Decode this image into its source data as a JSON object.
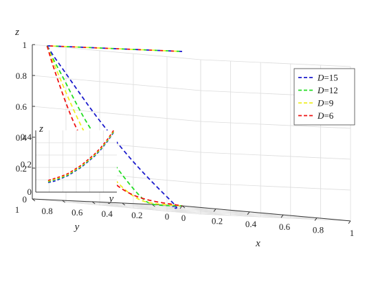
{
  "chart_data": {
    "type": "line",
    "projection": "3d",
    "axes": {
      "x": {
        "label": "x",
        "range": [
          0,
          1
        ],
        "ticks": [
          "0",
          "0.2",
          "0.4",
          "0.6",
          "0.8",
          "1"
        ]
      },
      "y": {
        "label": "y",
        "range": [
          0,
          1
        ],
        "ticks": [
          "0",
          "0.2",
          "0.4",
          "0.6",
          "0.8",
          "1"
        ]
      },
      "z": {
        "label": "z",
        "range": [
          0,
          1
        ],
        "ticks": [
          "0",
          "0.2",
          "0.4",
          "0.6",
          "0.8",
          "1"
        ]
      }
    },
    "grid": true,
    "legend": {
      "placement": "right",
      "var": "D",
      "entries": [
        "=15",
        "=12",
        "=9",
        "=6"
      ]
    },
    "series": [
      {
        "name": "D=15",
        "color": "#1a1acc",
        "style": "dashed",
        "points": [
          [
            0.07,
            0.98,
            1.0
          ],
          [
            0.1,
            0.98,
            0.95
          ],
          [
            0.16,
            0.97,
            0.85
          ],
          [
            0.23,
            0.95,
            0.72
          ],
          [
            0.3,
            0.92,
            0.58
          ],
          [
            0.37,
            0.87,
            0.43
          ],
          [
            0.43,
            0.8,
            0.28
          ],
          [
            0.47,
            0.7,
            0.14
          ],
          [
            0.48,
            0.6,
            0.04
          ],
          [
            0.42,
            0.5,
            0.0
          ],
          [
            0.28,
            0.38,
            0.0
          ],
          [
            0.12,
            0.2,
            0.0
          ],
          [
            0.0,
            0.0,
            0.0
          ]
        ]
      },
      {
        "name": "D=12",
        "color": "#22dd22",
        "style": "dashed",
        "points": [
          [
            0.07,
            0.98,
            1.0
          ],
          [
            0.09,
            0.97,
            0.93
          ],
          [
            0.13,
            0.95,
            0.82
          ],
          [
            0.17,
            0.92,
            0.68
          ],
          [
            0.21,
            0.88,
            0.53
          ],
          [
            0.25,
            0.82,
            0.38
          ],
          [
            0.27,
            0.74,
            0.24
          ],
          [
            0.27,
            0.64,
            0.12
          ],
          [
            0.24,
            0.53,
            0.04
          ],
          [
            0.17,
            0.4,
            0.01
          ],
          [
            0.08,
            0.22,
            0.0
          ],
          [
            0.0,
            0.0,
            0.0
          ]
        ]
      },
      {
        "name": "D=9",
        "color": "#eeee22",
        "style": "dashed",
        "points": [
          [
            0.07,
            0.98,
            1.0
          ],
          [
            0.08,
            0.96,
            0.92
          ],
          [
            0.1,
            0.93,
            0.8
          ],
          [
            0.12,
            0.89,
            0.66
          ],
          [
            0.14,
            0.84,
            0.51
          ],
          [
            0.155,
            0.78,
            0.37
          ],
          [
            0.16,
            0.7,
            0.24
          ],
          [
            0.155,
            0.6,
            0.13
          ],
          [
            0.13,
            0.47,
            0.05
          ],
          [
            0.08,
            0.32,
            0.01
          ],
          [
            0.0,
            0.0,
            0.0
          ]
        ]
      },
      {
        "name": "D=6",
        "color": "#ee1111",
        "style": "dashed",
        "points": [
          [
            0.07,
            0.98,
            1.0
          ],
          [
            0.07,
            0.95,
            0.9
          ],
          [
            0.075,
            0.91,
            0.77
          ],
          [
            0.08,
            0.86,
            0.62
          ],
          [
            0.08,
            0.8,
            0.48
          ],
          [
            0.08,
            0.72,
            0.34
          ],
          [
            0.07,
            0.62,
            0.21
          ],
          [
            0.05,
            0.48,
            0.1
          ],
          [
            0.03,
            0.3,
            0.03
          ],
          [
            0.0,
            0.0,
            0.0
          ]
        ]
      }
    ],
    "top_segment": {
      "from": [
        0.0,
        0.0,
        1.0
      ],
      "to": [
        0.07,
        0.98,
        1.0
      ]
    },
    "inset": {
      "axes": {
        "z_ticks": [
          "0",
          "0.2",
          "0.4"
        ],
        "z_label": "z",
        "y_label": "y"
      },
      "grid": true,
      "series": [
        {
          "name": "D=15",
          "color": "#1a1acc",
          "points": [
            [
              0.0,
              0.07
            ],
            [
              0.1,
              0.08
            ],
            [
              0.2,
              0.1
            ],
            [
              0.3,
              0.12
            ],
            [
              0.4,
              0.15
            ],
            [
              0.5,
              0.18
            ],
            [
              0.6,
              0.22
            ],
            [
              0.7,
              0.26
            ],
            [
              0.8,
              0.31
            ],
            [
              0.9,
              0.37
            ],
            [
              1.0,
              0.44
            ]
          ]
        },
        {
          "name": "D=12",
          "color": "#22dd22",
          "points": [
            [
              0.0,
              0.075
            ],
            [
              0.1,
              0.09
            ],
            [
              0.2,
              0.105
            ],
            [
              0.3,
              0.125
            ],
            [
              0.4,
              0.155
            ],
            [
              0.5,
              0.185
            ],
            [
              0.6,
              0.225
            ],
            [
              0.7,
              0.265
            ],
            [
              0.8,
              0.315
            ],
            [
              0.9,
              0.375
            ],
            [
              1.0,
              0.445
            ]
          ]
        },
        {
          "name": "D=9",
          "color": "#eeee22",
          "points": [
            [
              0.0,
              0.08
            ],
            [
              0.1,
              0.095
            ],
            [
              0.2,
              0.11
            ],
            [
              0.3,
              0.13
            ],
            [
              0.4,
              0.16
            ],
            [
              0.5,
              0.19
            ],
            [
              0.6,
              0.23
            ],
            [
              0.7,
              0.27
            ],
            [
              0.8,
              0.32
            ],
            [
              0.9,
              0.38
            ],
            [
              1.0,
              0.45
            ]
          ]
        },
        {
          "name": "D=6",
          "color": "#ee1111",
          "points": [
            [
              0.0,
              0.085
            ],
            [
              0.1,
              0.1
            ],
            [
              0.2,
              0.115
            ],
            [
              0.3,
              0.135
            ],
            [
              0.4,
              0.165
            ],
            [
              0.5,
              0.195
            ],
            [
              0.6,
              0.235
            ],
            [
              0.7,
              0.275
            ],
            [
              0.8,
              0.325
            ],
            [
              0.9,
              0.385
            ],
            [
              1.0,
              0.455
            ]
          ]
        }
      ]
    }
  }
}
